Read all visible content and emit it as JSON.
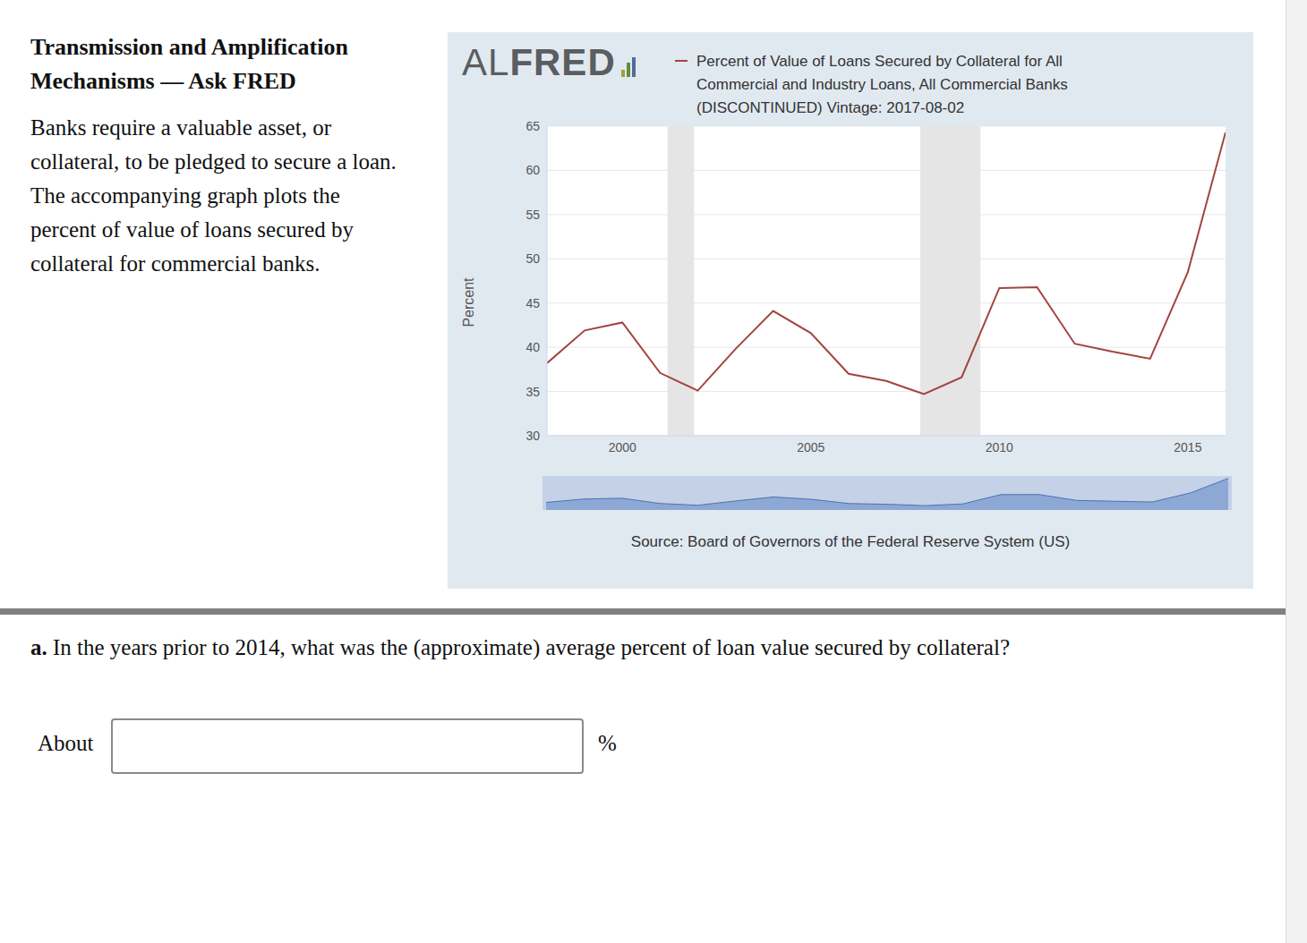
{
  "page": {
    "heading": [
      "Transmission and Amplification",
      "Mechanisms — Ask FRED"
    ],
    "intro": [
      "Banks require a valuable asset, or",
      "collateral, to be pledged to secure a loan.",
      "The accompanying graph plots the",
      "percent of value of loans secured by",
      "collateral for commercial banks."
    ],
    "logo": [
      "AL",
      "FRED"
    ],
    "source": "Source: Board of Governors of the Federal Reserve System (US)",
    "question": {
      "label": "a.",
      "text": "In the years prior to 2014, what was the (approximate) average percent of loan value secured by collateral?"
    },
    "answer_prefix": "About",
    "answer_unit": "%"
  },
  "chart_data": {
    "type": "line",
    "y_label": "Percent",
    "x": [
      1998,
      1999,
      2000,
      2001,
      2002,
      2003,
      2004,
      2005,
      2006,
      2007,
      2008,
      2009,
      2010,
      2011,
      2012,
      2013,
      2014,
      2015,
      2016
    ],
    "series": [
      {
        "name": "Percent of Value of Loans Secured by Collateral for All Commercial and Industry Loans, All Commercial Banks (DISCONTINUED) Vintage: 2017-08-02",
        "color": "#a2453f",
        "values": [
          38.2,
          41.9,
          42.8,
          37.1,
          35.1,
          39.8,
          44.1,
          41.6,
          37.0,
          36.2,
          34.7,
          36.6,
          46.7,
          46.8,
          40.4,
          39.5,
          38.7,
          48.5,
          64.3
        ]
      }
    ],
    "recessions": [
      [
        2001.2,
        2001.9
      ],
      [
        2007.9,
        2009.5
      ]
    ],
    "xlim": [
      1998,
      2016
    ],
    "xticks": [
      2000,
      2005,
      2010,
      2015
    ],
    "ylim": [
      30,
      65
    ],
    "yticks": [
      30,
      35,
      40,
      45,
      50,
      55,
      60,
      65
    ],
    "grid": true
  }
}
